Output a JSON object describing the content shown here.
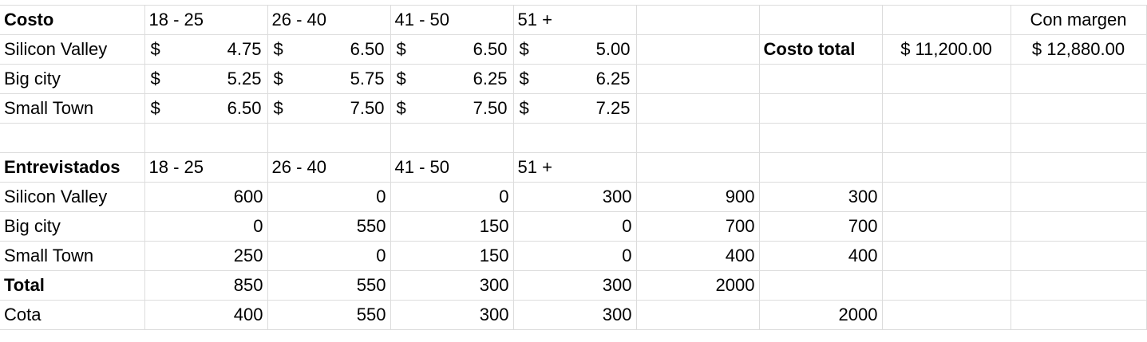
{
  "cost": {
    "title": "Costo",
    "age_headers": [
      "18 - 25",
      "26 - 40",
      "41 - 50",
      "51 +"
    ],
    "margin_label": "Con margen",
    "currency": "$",
    "rows": [
      {
        "label": "Silicon Valley",
        "values": [
          "4.75",
          "6.50",
          "6.50",
          "5.00"
        ]
      },
      {
        "label": "Big city",
        "values": [
          "5.25",
          "5.75",
          "6.25",
          "6.25"
        ]
      },
      {
        "label": "Small Town",
        "values": [
          "6.50",
          "7.50",
          "7.50",
          "7.25"
        ]
      }
    ],
    "total_cost_label": "Costo total",
    "total_cost_value": "$ 11,200.00",
    "margin_value": "$ 12,880.00"
  },
  "interviewed": {
    "title": "Entrevistados",
    "age_headers": [
      "18 - 25",
      "26 - 40",
      "41 - 50",
      "51 +"
    ],
    "rows": [
      {
        "label": "Silicon Valley",
        "values": [
          "600",
          "0",
          "0",
          "300"
        ],
        "sum": "900",
        "extra": "300"
      },
      {
        "label": "Big city",
        "values": [
          "0",
          "550",
          "150",
          "0"
        ],
        "sum": "700",
        "extra": "700"
      },
      {
        "label": "Small Town",
        "values": [
          "250",
          "0",
          "150",
          "0"
        ],
        "sum": "400",
        "extra": "400"
      }
    ],
    "total": {
      "label": "Total",
      "values": [
        "850",
        "550",
        "300",
        "300"
      ],
      "sum": "2000"
    },
    "quota": {
      "label": "Cota",
      "values": [
        "400",
        "550",
        "300",
        "300"
      ],
      "extra": "2000"
    }
  }
}
